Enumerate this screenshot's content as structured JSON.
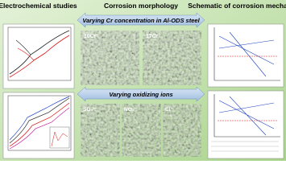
{
  "header": {
    "left_title": "Electrochemical studies",
    "center_title": "Corrosion morphology",
    "right_title": "Schematic of corrosion mechanism"
  },
  "banners": {
    "top": "Varying Cr concentration in Al-ODS steel",
    "bottom": "Varying oxidizing ions"
  },
  "images": {
    "top": [
      "10Cr",
      "17Cr"
    ],
    "bottom": [
      "SO₄²⁻",
      "NO₃⁻",
      "Cl⁻"
    ]
  }
}
